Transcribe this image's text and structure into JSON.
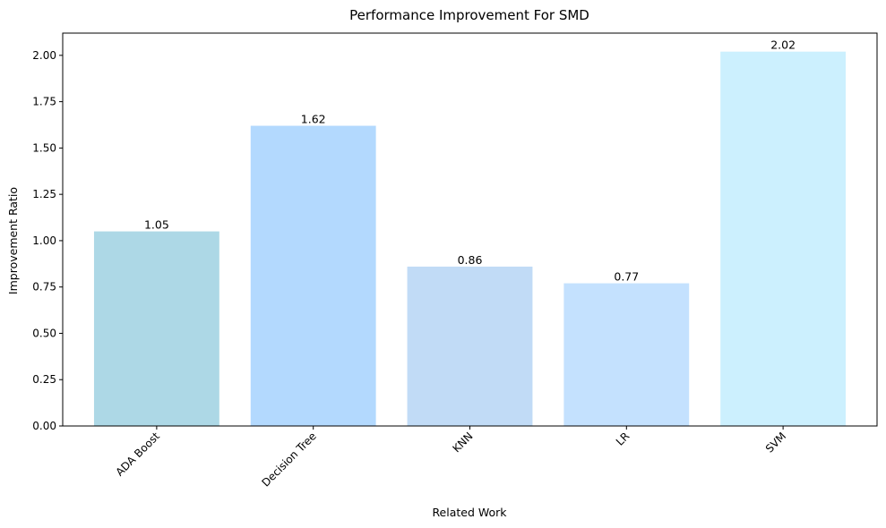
{
  "chart_data": {
    "type": "bar",
    "title": "Performance Improvement For SMD",
    "xlabel": "Related Work",
    "ylabel": "Improvement Ratio",
    "categories": [
      "ADA Boost",
      "Decision Tree",
      "KNN",
      "LR",
      "SVM"
    ],
    "values": [
      1.05,
      1.62,
      0.86,
      0.77,
      2.02
    ],
    "value_labels": [
      "1.05",
      "1.62",
      "0.86",
      "0.77",
      "2.02"
    ],
    "colors": [
      "#add8e6",
      "#b3d9fe",
      "#c1dbf6",
      "#c4e1fe",
      "#ccf0fe"
    ],
    "ylim": [
      0,
      2.12
    ],
    "yticks": [
      0,
      0.25,
      0.5,
      0.75,
      1.0,
      1.25,
      1.5,
      1.75,
      2.0
    ],
    "ytick_labels": [
      "0.00",
      "0.25",
      "0.50",
      "0.75",
      "1.00",
      "1.25",
      "1.50",
      "1.75",
      "2.00"
    ],
    "grid": false,
    "legend": "none"
  }
}
